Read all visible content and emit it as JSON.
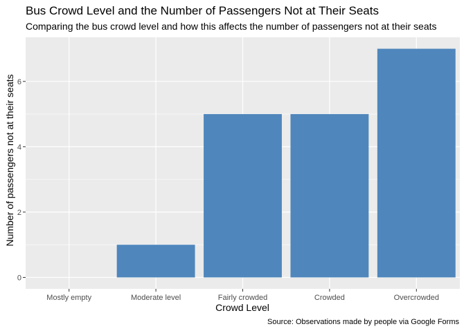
{
  "chart_data": {
    "type": "bar",
    "title": "Bus Crowd Level and the Number of Passengers Not at Their Seats",
    "subtitle": "Comparing the bus crowd level and how this affects the number of passengers not at their seats",
    "caption": "Source: Observations made by people via Google Forms",
    "xlabel": "Crowd Level",
    "ylabel": "Number of passengers not at their seats",
    "categories": [
      "Mostly empty",
      "Moderate level",
      "Fairly crowded",
      "Crowded",
      "Overcrowded"
    ],
    "values": [
      0,
      1,
      5,
      5,
      7
    ],
    "ylim": [
      -0.35,
      7.35
    ],
    "yticks": [
      0,
      2,
      4,
      6
    ],
    "grid": true,
    "colors": {
      "bar": "#4f86bc",
      "panel": "#ebebeb",
      "grid": "#ffffff"
    }
  }
}
